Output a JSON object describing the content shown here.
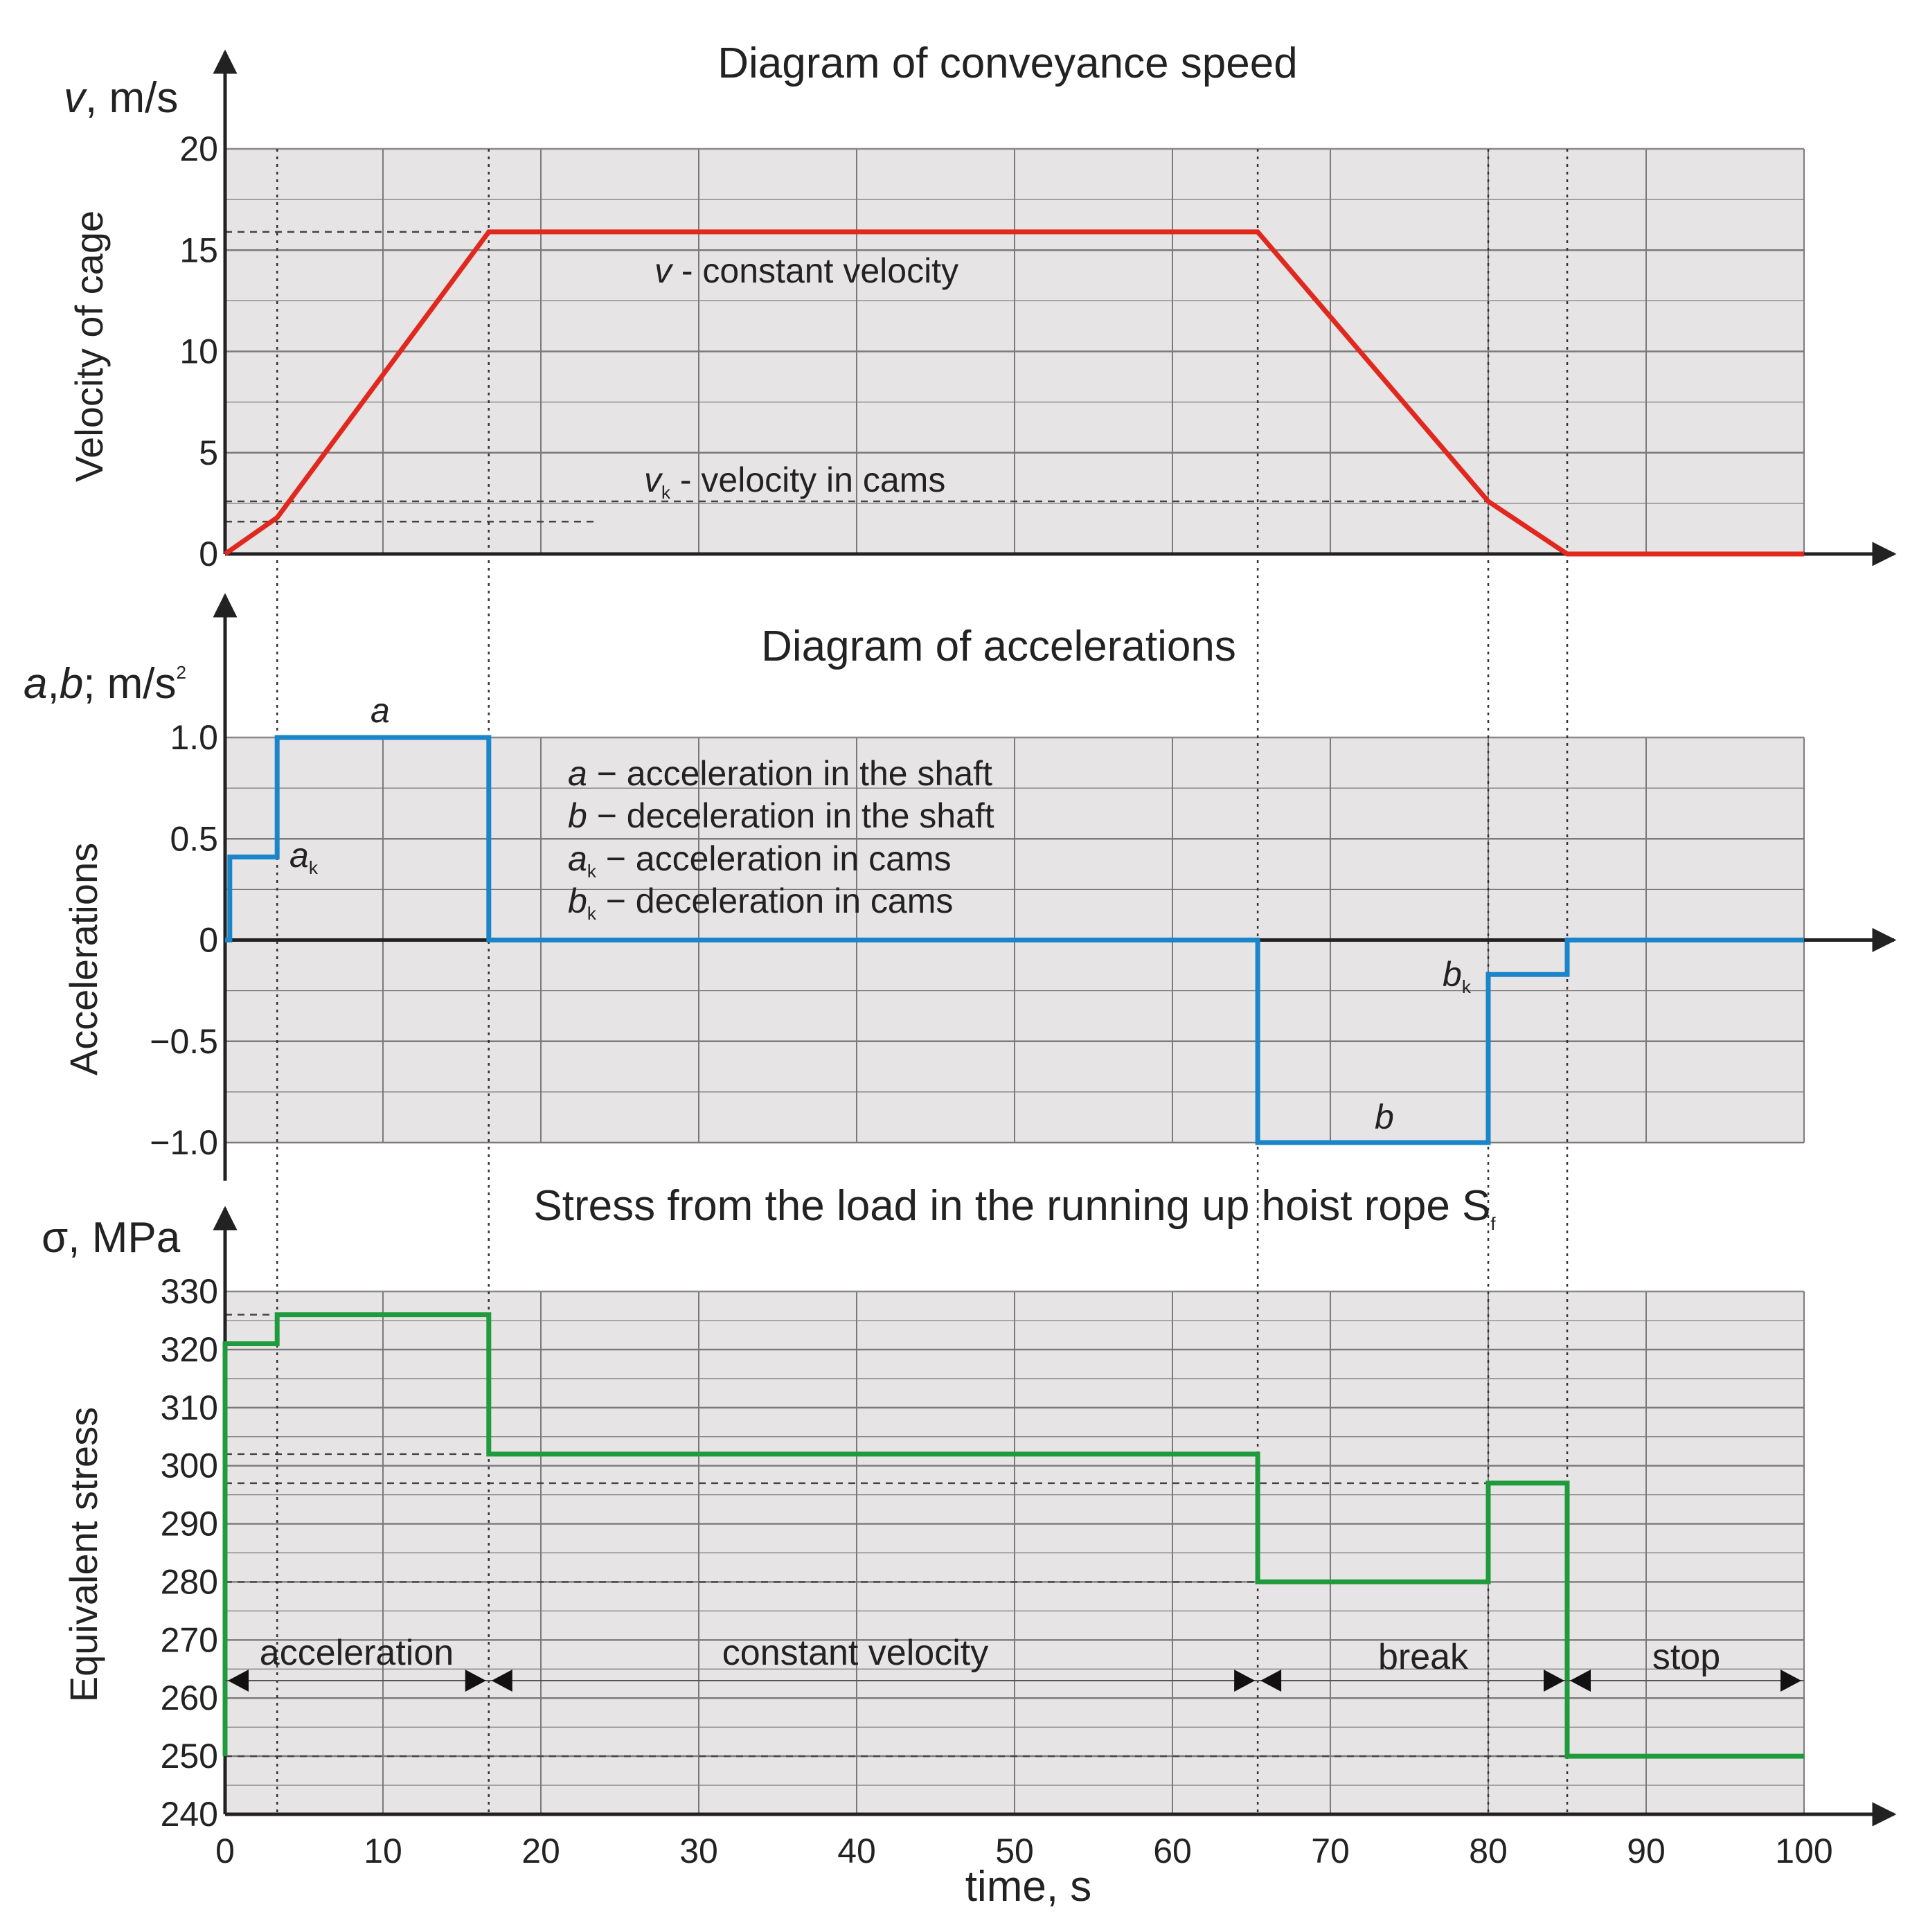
{
  "chart_data": [
    {
      "type": "line",
      "title": "Diagram of conveyance speed",
      "ylabel": "Velocity of cage",
      "yunit": {
        "symbol": "v",
        "unit": ", m/s"
      },
      "xlim": [
        0,
        100
      ],
      "ylim": [
        0,
        20
      ],
      "yticks": [
        0,
        5,
        10,
        15,
        20
      ],
      "ytick_labels": [
        "0",
        "5",
        "10",
        "15",
        "20"
      ],
      "series": [
        {
          "name": "velocity",
          "color": "#e0281e",
          "x": [
            0,
            3.3,
            16.7,
            65.4,
            80,
            85,
            100
          ],
          "y": [
            0,
            1.8,
            15.9,
            15.9,
            2.6,
            0,
            0
          ]
        }
      ],
      "reference_lines": [
        {
          "y": 15.9,
          "x": [
            0,
            65.4
          ]
        },
        {
          "y": 2.6,
          "x": [
            0,
            80
          ]
        },
        {
          "y": 1.6,
          "x": [
            0,
            23.5
          ]
        }
      ],
      "annotations": [
        {
          "symbol": "v",
          "text": " - constant velocity",
          "x": 27.5,
          "y": 13.8
        },
        {
          "symbol": "v",
          "subscript": "k",
          "text": " - velocity in cams",
          "x": 26.5,
          "y": 3.4
        }
      ]
    },
    {
      "type": "line",
      "title": "Diagram of accelerations",
      "ylabel": "Accelerations",
      "yunit": {
        "symbol": "a",
        "sep": ",",
        "symbol2": "b",
        "unit": "; m/s",
        "sup": "2"
      },
      "xlim": [
        0,
        100
      ],
      "ylim": [
        -1.0,
        1.0
      ],
      "yticks": [
        -1.0,
        -0.5,
        0,
        0.5,
        1.0
      ],
      "ytick_labels": [
        "−1.0",
        "−0.5",
        "0",
        "0.5",
        "1.0"
      ],
      "series": [
        {
          "name": "acceleration",
          "color": "#1a85c8",
          "step": true,
          "x": [
            0,
            0.3,
            0.3,
            3.3,
            3.3,
            16.7,
            16.7,
            65.4,
            65.4,
            80,
            80,
            85,
            85,
            100
          ],
          "y": [
            0,
            0,
            0.41,
            0.41,
            1.0,
            1.0,
            0,
            0,
            -1.0,
            -1.0,
            -0.17,
            -0.17,
            0,
            0
          ]
        }
      ],
      "labels": [
        {
          "symbol": "a",
          "x": 10,
          "y": 1.08
        },
        {
          "symbol": "a",
          "subscript": "k",
          "x": 4.2,
          "y": 0.34
        },
        {
          "symbol": "b",
          "x": 72.5,
          "y": -0.92
        },
        {
          "symbol": "b",
          "subscript": "k",
          "x": 77.5,
          "y": -0.2
        }
      ],
      "legend": [
        {
          "symbol": "a",
          "subscript": "",
          "text": " − acceleration in the shaft"
        },
        {
          "symbol": "b",
          "subscript": "",
          "text": " − deceleration in the shaft"
        },
        {
          "symbol": "a",
          "subscript": "k",
          "text": " − acceleration in cams"
        },
        {
          "symbol": "b",
          "subscript": "k",
          "text": " − deceleration in cams"
        }
      ]
    },
    {
      "type": "line",
      "title": "Stress from the load in the running up hoist rope S",
      "title_subscript": "f",
      "xlabel": "time, s",
      "ylabel": "Equivalent stress",
      "yunit": {
        "symbol": "σ",
        "unit": ", MPa"
      },
      "xlim": [
        0,
        100
      ],
      "ylim": [
        240,
        330
      ],
      "xticks": [
        0,
        10,
        20,
        30,
        40,
        50,
        60,
        70,
        80,
        90,
        100
      ],
      "xtick_labels": [
        "0",
        "10",
        "20",
        "30",
        "40",
        "50",
        "60",
        "70",
        "80",
        "90",
        "100"
      ],
      "yticks": [
        240,
        250,
        260,
        270,
        280,
        290,
        300,
        310,
        320,
        330
      ],
      "ytick_labels": [
        "240",
        "250",
        "260",
        "270",
        "280",
        "290",
        "300",
        "310",
        "320",
        "330"
      ],
      "series": [
        {
          "name": "stress",
          "color": "#1f9a3c",
          "step": true,
          "x": [
            0,
            0,
            3.3,
            3.3,
            16.7,
            16.7,
            65.4,
            65.4,
            80,
            80,
            85,
            85,
            100
          ],
          "y": [
            250,
            321,
            321,
            326,
            326,
            302,
            302,
            280,
            280,
            297,
            297,
            250,
            250
          ]
        }
      ],
      "reference_lines": [
        {
          "y": 326,
          "x": [
            0,
            3.3
          ]
        },
        {
          "y": 302,
          "x": [
            0,
            16.7
          ]
        },
        {
          "y": 297,
          "x": [
            0,
            80
          ]
        },
        {
          "y": 280,
          "x": [
            0,
            65.4
          ]
        },
        {
          "y": 250,
          "x": [
            0,
            85
          ]
        }
      ],
      "phases": [
        {
          "label": "acceleration",
          "x": [
            0,
            16.7
          ]
        },
        {
          "label": "constant velocity",
          "x": [
            16.7,
            65.4
          ]
        },
        {
          "label": "break",
          "x": [
            65.4,
            85
          ]
        },
        {
          "label": "stop",
          "x": [
            85,
            100
          ]
        }
      ],
      "phase_arrow_y": 263
    }
  ],
  "event_times": [
    3.3,
    16.7,
    65.4,
    80,
    85,
    100
  ]
}
